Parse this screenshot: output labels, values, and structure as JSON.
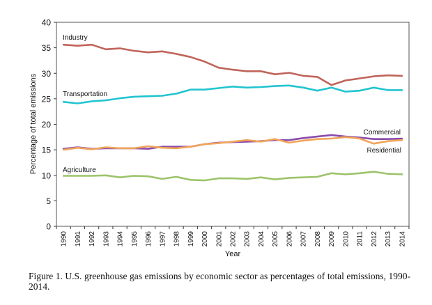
{
  "chart_data": {
    "type": "line",
    "title": "",
    "xlabel": "Year",
    "ylabel": "Percentage of total emissions",
    "ylim": [
      0,
      40
    ],
    "yticks": [
      0,
      5,
      10,
      15,
      20,
      25,
      30,
      35,
      40
    ],
    "ytick_labels": [
      "0",
      "5",
      "10",
      "15",
      "20",
      "25",
      "30",
      "35",
      "40"
    ],
    "grid": false,
    "legend": "inline labels",
    "categories": [
      "1990",
      "1991",
      "1992",
      "1993",
      "1994",
      "1995",
      "1996",
      "1997",
      "1998",
      "1999",
      "2000",
      "2001",
      "2002",
      "2003",
      "2004",
      "2005",
      "2006",
      "2007",
      "2008",
      "2009",
      "2010",
      "2011",
      "2012",
      "2013",
      "2014"
    ],
    "series": [
      {
        "name": "Industry",
        "color": "#C0645A",
        "values": [
          35.6,
          35.4,
          35.6,
          34.7,
          34.9,
          34.4,
          34.1,
          34.3,
          33.8,
          33.2,
          32.3,
          31.1,
          30.7,
          30.4,
          30.4,
          29.8,
          30.1,
          29.5,
          29.3,
          27.7,
          28.6,
          29.0,
          29.4,
          29.6,
          29.5
        ]
      },
      {
        "name": "Transportation",
        "color": "#22C4D0",
        "values": [
          24.4,
          24.1,
          24.5,
          24.7,
          25.1,
          25.4,
          25.5,
          25.6,
          26.0,
          26.8,
          26.8,
          27.1,
          27.4,
          27.2,
          27.3,
          27.5,
          27.6,
          27.2,
          26.6,
          27.2,
          26.4,
          26.6,
          27.2,
          26.7,
          26.7
        ]
      },
      {
        "name": "Commercial",
        "color": "#8A4BAE",
        "values": [
          15.2,
          15.5,
          15.2,
          15.3,
          15.3,
          15.3,
          15.2,
          15.6,
          15.6,
          15.6,
          16.1,
          16.4,
          16.5,
          16.6,
          16.7,
          16.9,
          16.9,
          17.3,
          17.6,
          17.9,
          17.6,
          17.4,
          17.1,
          17.1,
          17.2
        ]
      },
      {
        "name": "Residential",
        "color": "#F0A55A",
        "values": [
          15.0,
          15.4,
          15.1,
          15.5,
          15.3,
          15.3,
          15.7,
          15.4,
          15.3,
          15.6,
          16.1,
          16.3,
          16.6,
          16.9,
          16.6,
          17.1,
          16.4,
          16.8,
          17.1,
          17.2,
          17.5,
          17.2,
          16.2,
          16.7,
          16.9
        ]
      },
      {
        "name": "Agriculture",
        "color": "#9CC46A",
        "values": [
          9.9,
          9.9,
          9.9,
          10.0,
          9.6,
          9.9,
          9.8,
          9.3,
          9.7,
          9.1,
          9.0,
          9.4,
          9.4,
          9.3,
          9.6,
          9.2,
          9.5,
          9.6,
          9.7,
          10.4,
          10.2,
          10.4,
          10.7,
          10.3,
          10.2
        ]
      }
    ],
    "annotations": [
      {
        "text": "Industry",
        "series": "Industry",
        "position": "above line, left"
      },
      {
        "text": "Transportation",
        "series": "Transportation",
        "position": "above line, left"
      },
      {
        "text": "Commercial",
        "series": "Commercial",
        "position": "above line, right"
      },
      {
        "text": "Residential",
        "series": "Residential",
        "position": "below line, right"
      },
      {
        "text": "Agriculture",
        "series": "Agriculture",
        "position": "above line, left"
      }
    ]
  },
  "caption": "Figure 1.  U.S. greenhouse gas emissions by economic sector as percentages of total emissions, 1990-2014."
}
